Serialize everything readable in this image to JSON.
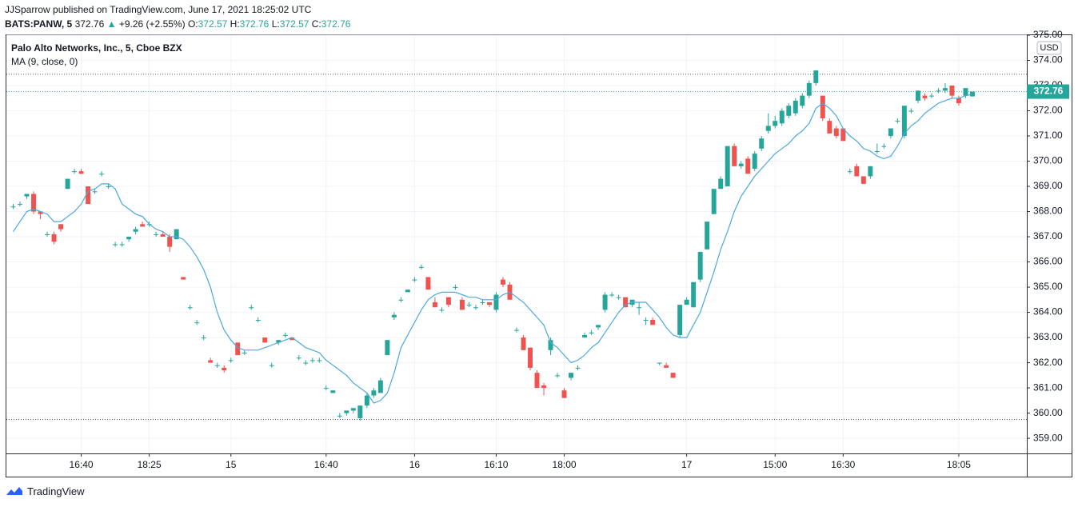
{
  "header": {
    "publisher": "JJSparrow published on TradingView.com, June 17, 2021 18:25:02 UTC",
    "symbol": "BATS:PANW, 5",
    "last": "372.76",
    "arrow": "▲",
    "change": "+9.26 (+2.55%)",
    "o_label": "O:",
    "o": "372.57",
    "h_label": "H:",
    "h": "372.76",
    "l_label": "L:",
    "l": "372.57",
    "c_label": "C:",
    "c": "372.76"
  },
  "chart_data": {
    "type": "candlestick",
    "title": "Palo Alto Networks, Inc., 5, Cboe BZX",
    "indicator": "MA (9, close, 0)",
    "currency": "USD",
    "up_color": "#26a69a",
    "down_color": "#ef5350",
    "ma_color": "#4ba8e0",
    "last_price": 372.76,
    "last_price_label": "372.76",
    "high_line": 373.45,
    "low_line": 359.75,
    "ylim": [
      358.4,
      375.0
    ],
    "yticks": [
      {
        "value": 359,
        "label": "359.00"
      },
      {
        "value": 360,
        "label": "360.00"
      },
      {
        "value": 361,
        "label": "361.00"
      },
      {
        "value": 362,
        "label": "362.00"
      },
      {
        "value": 363,
        "label": "363.00"
      },
      {
        "value": 364,
        "label": "364.00"
      },
      {
        "value": 365,
        "label": "365.00"
      },
      {
        "value": 366,
        "label": "366.00"
      },
      {
        "value": 367,
        "label": "367.00"
      },
      {
        "value": 368,
        "label": "368.00"
      },
      {
        "value": 369,
        "label": "369.00"
      },
      {
        "value": 370,
        "label": "370.00"
      },
      {
        "value": 371,
        "label": "371.00"
      },
      {
        "value": 372,
        "label": "372.00"
      },
      {
        "value": 373,
        "label": "373.00"
      },
      {
        "value": 374,
        "label": "374.00"
      },
      {
        "value": 375,
        "label": "375.00"
      }
    ],
    "xlim": [
      -1,
      149
    ],
    "xticks": [
      {
        "value": 10,
        "label": "16:40"
      },
      {
        "value": 20,
        "label": "18:25"
      },
      {
        "value": 32,
        "label": "15"
      },
      {
        "value": 46,
        "label": "16:40"
      },
      {
        "value": 59,
        "label": "16"
      },
      {
        "value": 71,
        "label": "16:10"
      },
      {
        "value": 81,
        "label": "18:00"
      },
      {
        "value": 99,
        "label": "17"
      },
      {
        "value": 112,
        "label": "15:00"
      },
      {
        "value": 122,
        "label": "16:30"
      },
      {
        "value": 139,
        "label": "18:05"
      }
    ],
    "candles": [
      [
        368.2,
        368.3,
        368.1,
        368.2
      ],
      [
        368.3,
        368.4,
        368.2,
        368.3
      ],
      [
        368.6,
        368.7,
        368.5,
        368.7
      ],
      [
        368.7,
        368.8,
        367.9,
        368.0
      ],
      [
        368.0,
        368.0,
        367.7,
        367.9
      ],
      [
        367.1,
        367.2,
        367.0,
        367.1
      ],
      [
        367.1,
        367.2,
        366.7,
        366.8
      ],
      [
        367.5,
        367.5,
        367.2,
        367.3
      ],
      [
        368.9,
        369.3,
        368.9,
        369.3
      ],
      [
        369.6,
        369.7,
        369.5,
        369.6
      ],
      [
        369.6,
        369.7,
        369.5,
        369.5
      ],
      [
        369.0,
        369.0,
        368.3,
        368.3
      ],
      [
        368.8,
        368.9,
        368.7,
        368.8
      ],
      [
        369.5,
        369.6,
        369.4,
        369.5
      ],
      [
        369.0,
        369.1,
        368.9,
        369.0
      ],
      [
        366.7,
        366.8,
        366.6,
        366.7
      ],
      [
        366.7,
        366.8,
        366.6,
        366.7
      ],
      [
        366.9,
        367.0,
        366.8,
        367.0
      ],
      [
        367.2,
        367.4,
        367.1,
        367.3
      ],
      [
        367.5,
        367.6,
        367.4,
        367.4
      ],
      [
        367.5,
        367.6,
        367.4,
        367.5
      ],
      [
        367.1,
        367.2,
        367.0,
        367.1
      ],
      [
        367.1,
        367.2,
        367.0,
        367.0
      ],
      [
        367.0,
        367.1,
        366.4,
        366.6
      ],
      [
        366.9,
        367.3,
        366.9,
        367.3
      ],
      [
        365.4,
        365.4,
        365.3,
        365.3
      ],
      [
        364.2,
        364.3,
        364.1,
        364.2
      ],
      [
        363.6,
        363.7,
        363.5,
        363.6
      ],
      [
        363.0,
        363.1,
        362.9,
        363.0
      ],
      [
        362.1,
        362.2,
        362.0,
        362.0
      ],
      [
        361.9,
        362.0,
        361.8,
        361.9
      ],
      [
        361.8,
        361.9,
        361.6,
        361.7
      ],
      [
        362.1,
        362.2,
        362.0,
        362.1
      ],
      [
        362.8,
        362.8,
        362.3,
        362.3
      ],
      [
        362.4,
        362.5,
        362.3,
        362.4
      ],
      [
        364.2,
        364.3,
        364.1,
        364.2
      ],
      [
        363.7,
        363.8,
        363.6,
        363.7
      ],
      [
        363.0,
        363.0,
        362.8,
        362.8
      ],
      [
        361.9,
        362.0,
        361.8,
        361.9
      ],
      [
        362.8,
        362.9,
        362.7,
        362.9
      ],
      [
        363.1,
        363.2,
        363.0,
        363.1
      ],
      [
        363.0,
        363.0,
        362.9,
        362.9
      ],
      [
        362.2,
        362.3,
        362.1,
        362.2
      ],
      [
        362.0,
        362.1,
        361.9,
        362.0
      ],
      [
        362.1,
        362.2,
        362.0,
        362.1
      ],
      [
        362.1,
        362.2,
        362.0,
        362.1
      ],
      [
        361.0,
        361.1,
        360.9,
        361.0
      ],
      [
        360.8,
        360.9,
        360.8,
        360.9
      ],
      [
        359.9,
        360.0,
        359.8,
        359.9
      ],
      [
        360.0,
        360.1,
        359.9,
        360.1
      ],
      [
        360.1,
        360.2,
        360.0,
        360.2
      ],
      [
        359.8,
        360.3,
        359.7,
        360.3
      ],
      [
        360.3,
        360.8,
        360.2,
        360.7
      ],
      [
        360.7,
        361.0,
        360.6,
        360.9
      ],
      [
        360.8,
        361.4,
        360.8,
        361.3
      ],
      [
        362.3,
        362.9,
        362.3,
        362.9
      ],
      [
        363.8,
        364.0,
        363.7,
        363.9
      ],
      [
        364.5,
        364.6,
        364.4,
        364.5
      ],
      [
        364.8,
        364.9,
        364.8,
        364.9
      ],
      [
        365.3,
        365.4,
        365.2,
        365.3
      ],
      [
        365.8,
        365.9,
        365.7,
        365.8
      ],
      [
        365.4,
        365.4,
        364.9,
        364.9
      ],
      [
        364.4,
        364.6,
        364.2,
        364.2
      ],
      [
        364.1,
        364.2,
        364.0,
        364.1
      ],
      [
        364.6,
        364.6,
        364.2,
        364.3
      ],
      [
        365.0,
        365.1,
        364.9,
        365.0
      ],
      [
        364.5,
        364.6,
        364.1,
        364.1
      ],
      [
        364.3,
        364.4,
        364.2,
        364.3
      ],
      [
        364.2,
        364.3,
        364.1,
        364.2
      ],
      [
        364.4,
        364.5,
        364.3,
        364.4
      ],
      [
        364.4,
        364.4,
        364.2,
        364.3
      ],
      [
        364.1,
        364.8,
        364.0,
        364.7
      ],
      [
        365.3,
        365.4,
        365.0,
        365.1
      ],
      [
        365.1,
        365.2,
        364.5,
        364.5
      ],
      [
        363.3,
        363.4,
        363.2,
        363.3
      ],
      [
        363.0,
        363.1,
        362.5,
        362.5
      ],
      [
        362.6,
        362.6,
        361.7,
        361.8
      ],
      [
        361.6,
        361.7,
        361.0,
        361.0
      ],
      [
        361.1,
        361.2,
        360.7,
        361.0
      ],
      [
        362.5,
        363.0,
        362.3,
        362.9
      ],
      [
        361.5,
        361.6,
        361.4,
        361.5
      ],
      [
        360.9,
        361.0,
        360.6,
        360.6
      ],
      [
        361.4,
        361.6,
        361.3,
        361.6
      ],
      [
        361.8,
        361.9,
        361.7,
        361.8
      ],
      [
        363.0,
        363.2,
        363.0,
        363.1
      ],
      [
        363.2,
        363.3,
        363.1,
        363.2
      ],
      [
        363.4,
        363.5,
        363.3,
        363.5
      ],
      [
        364.1,
        364.8,
        364.0,
        364.7
      ],
      [
        364.7,
        364.8,
        364.6,
        364.7
      ],
      [
        364.6,
        364.7,
        364.5,
        364.6
      ],
      [
        364.6,
        364.6,
        364.2,
        364.2
      ],
      [
        364.3,
        364.5,
        364.2,
        364.5
      ],
      [
        364.2,
        364.4,
        363.9,
        364.2
      ],
      [
        363.7,
        363.8,
        363.5,
        363.7
      ],
      [
        363.7,
        363.8,
        363.5,
        363.5
      ],
      [
        362.0,
        362.0,
        361.9,
        362.0
      ],
      [
        361.9,
        362.0,
        361.8,
        361.8
      ],
      [
        361.6,
        361.6,
        361.4,
        361.4
      ],
      [
        363.1,
        364.3,
        363.0,
        364.3
      ],
      [
        364.3,
        364.6,
        364.3,
        364.5
      ],
      [
        364.2,
        365.2,
        364.2,
        365.2
      ],
      [
        365.3,
        366.4,
        365.2,
        366.4
      ],
      [
        366.5,
        367.6,
        366.5,
        367.6
      ],
      [
        367.9,
        368.9,
        367.9,
        368.9
      ],
      [
        368.9,
        369.4,
        368.9,
        369.3
      ],
      [
        369.0,
        370.6,
        369.0,
        370.6
      ],
      [
        370.6,
        370.7,
        369.8,
        369.8
      ],
      [
        369.8,
        370.0,
        369.7,
        369.9
      ],
      [
        370.1,
        370.2,
        369.5,
        369.5
      ],
      [
        369.7,
        370.4,
        369.6,
        370.3
      ],
      [
        370.5,
        371.0,
        370.4,
        370.9
      ],
      [
        371.2,
        371.9,
        371.1,
        371.4
      ],
      [
        371.4,
        371.8,
        371.3,
        371.6
      ],
      [
        371.5,
        372.1,
        371.4,
        372.0
      ],
      [
        371.8,
        372.3,
        371.7,
        372.2
      ],
      [
        371.9,
        372.5,
        371.8,
        372.4
      ],
      [
        372.2,
        372.7,
        372.1,
        372.6
      ],
      [
        372.6,
        373.2,
        372.5,
        373.1
      ],
      [
        373.1,
        373.6,
        373.0,
        373.6
      ],
      [
        372.6,
        372.6,
        371.6,
        371.7
      ],
      [
        371.6,
        371.7,
        371.1,
        371.1
      ],
      [
        371.3,
        371.4,
        370.9,
        371.0
      ],
      [
        371.3,
        371.3,
        370.8,
        370.8
      ],
      [
        369.6,
        369.7,
        369.5,
        369.6
      ],
      [
        369.8,
        369.9,
        369.4,
        369.4
      ],
      [
        369.4,
        369.4,
        369.1,
        369.1
      ],
      [
        369.4,
        369.8,
        369.3,
        369.8
      ],
      [
        370.4,
        370.7,
        370.3,
        370.4
      ],
      [
        370.6,
        370.7,
        370.5,
        370.6
      ],
      [
        371.0,
        371.3,
        370.9,
        371.3
      ],
      [
        371.6,
        371.7,
        371.5,
        371.6
      ],
      [
        371.0,
        372.2,
        370.9,
        372.2
      ],
      [
        372.0,
        372.1,
        371.9,
        372.0
      ],
      [
        372.4,
        372.8,
        372.3,
        372.8
      ],
      [
        372.6,
        372.7,
        372.4,
        372.5
      ],
      [
        372.6,
        372.7,
        372.5,
        372.6
      ],
      [
        372.8,
        372.9,
        372.7,
        372.8
      ],
      [
        372.8,
        373.1,
        372.7,
        372.9
      ],
      [
        373.0,
        373.0,
        372.5,
        372.6
      ],
      [
        372.5,
        372.6,
        372.2,
        372.3
      ],
      [
        372.6,
        372.9,
        372.5,
        372.9
      ],
      [
        372.57,
        372.76,
        372.57,
        372.76
      ]
    ],
    "ma": [
      367.2,
      367.6,
      368.0,
      368.1,
      368.0,
      367.9,
      367.6,
      367.6,
      367.8,
      368.0,
      368.3,
      368.8,
      368.9,
      369.1,
      369.1,
      368.9,
      368.3,
      368.1,
      367.9,
      367.8,
      367.5,
      367.3,
      367.2,
      367.0,
      367.0,
      366.9,
      366.6,
      366.2,
      365.7,
      365.0,
      364.0,
      363.3,
      362.9,
      362.6,
      362.5,
      362.5,
      362.5,
      362.6,
      362.7,
      362.8,
      362.9,
      363.0,
      362.8,
      362.6,
      362.5,
      362.4,
      362.1,
      361.9,
      361.7,
      361.5,
      361.2,
      361.0,
      360.8,
      360.4,
      360.5,
      360.8,
      361.6,
      362.6,
      363.1,
      363.6,
      364.1,
      364.5,
      364.7,
      364.8,
      364.8,
      364.8,
      364.7,
      364.6,
      364.6,
      364.5,
      364.5,
      364.5,
      364.7,
      364.8,
      364.6,
      364.4,
      364.1,
      363.8,
      363.5,
      362.8,
      362.6,
      362.3,
      362.0,
      362.1,
      362.3,
      362.6,
      362.8,
      363.2,
      363.6,
      364.0,
      364.3,
      364.4,
      364.4,
      364.4,
      364.1,
      363.8,
      363.4,
      363.1,
      363.0,
      363.0,
      363.5,
      364.0,
      364.8,
      365.6,
      366.5,
      367.2,
      368.0,
      368.6,
      369.0,
      369.4,
      369.7,
      370.0,
      370.3,
      370.5,
      370.7,
      371.0,
      371.2,
      371.5,
      372.1,
      372.3,
      372.1,
      371.8,
      371.3,
      371.0,
      370.8,
      370.5,
      370.4,
      370.2,
      370.1,
      370.2,
      370.6,
      371.1,
      371.4,
      371.6,
      371.9,
      372.1,
      372.3,
      372.4,
      372.5,
      372.5,
      372.6,
      372.65
    ]
  },
  "footer": {
    "brand": "TradingView"
  }
}
